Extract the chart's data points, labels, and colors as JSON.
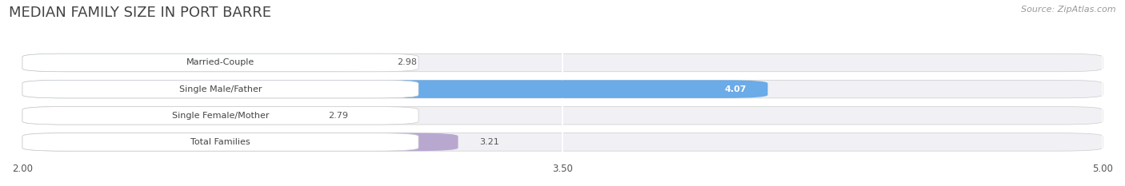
{
  "title": "MEDIAN FAMILY SIZE IN PORT BARRE",
  "source": "Source: ZipAtlas.com",
  "categories": [
    "Married-Couple",
    "Single Male/Father",
    "Single Female/Mother",
    "Total Families"
  ],
  "values": [
    2.98,
    4.07,
    2.79,
    3.21
  ],
  "bar_colors": [
    "#58c8c8",
    "#6aabe8",
    "#f0a0c0",
    "#b8a8d0"
  ],
  "x_min": 2.0,
  "x_max": 5.0,
  "x_ticks": [
    2.0,
    3.5,
    5.0
  ],
  "label_fontsize": 8.0,
  "value_fontsize": 8.0,
  "title_fontsize": 13,
  "source_fontsize": 8,
  "bg_color": "#ffffff",
  "bar_bg_color": "#eeeeee",
  "bar_row_bg": "#f5f5f8",
  "grid_color": "#dddddd"
}
